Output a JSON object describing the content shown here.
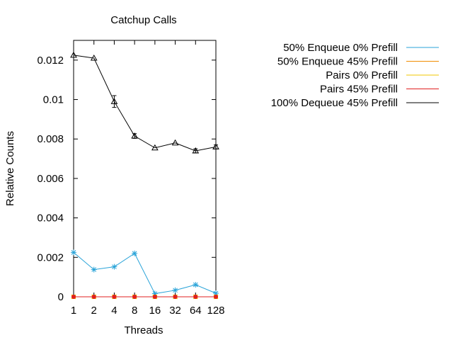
{
  "chart_data": {
    "type": "line",
    "title": "Catchup Calls",
    "xlabel": "Threads",
    "ylabel": "Relative Counts",
    "categories": [
      "1",
      "2",
      "4",
      "8",
      "16",
      "32",
      "64",
      "128"
    ],
    "x_scale": "log2",
    "ylim": [
      0,
      0.013
    ],
    "yticks": [
      "0",
      "0.002",
      "0.004",
      "0.006",
      "0.008",
      "0.01",
      "0.012"
    ],
    "ytick_values": [
      0,
      0.002,
      0.004,
      0.006,
      0.008,
      0.01,
      0.012
    ],
    "grid": false,
    "legend_position": "right",
    "series": [
      {
        "name": "50% Enqueue 0% Prefill",
        "color": "#29a3d8",
        "marker": "asterisk",
        "values": [
          0.00225,
          0.00138,
          0.00152,
          0.0022,
          0.00016,
          0.00033,
          0.00061,
          0.00018
        ],
        "errors": [
          0,
          0,
          0,
          0,
          0,
          0,
          0,
          0
        ]
      },
      {
        "name": "50% Enqueue 45% Prefill",
        "color": "#f18d00",
        "marker": "square",
        "values": [
          0,
          0,
          0,
          0,
          0,
          0,
          0,
          0
        ],
        "errors": [
          0,
          0,
          0,
          0,
          0,
          0,
          0,
          0
        ]
      },
      {
        "name": "Pairs 0% Prefill",
        "color": "#f2c700",
        "marker": "cross",
        "values": [
          0,
          0,
          0,
          0,
          0,
          0,
          0,
          0
        ],
        "errors": [
          0,
          0,
          0,
          0,
          0,
          0,
          0,
          0
        ]
      },
      {
        "name": "Pairs 45% Prefill",
        "color": "#e02020",
        "marker": "circle",
        "values": [
          0,
          0,
          0,
          0,
          0,
          0,
          0,
          0
        ],
        "errors": [
          0,
          0,
          0,
          0,
          0,
          0,
          0,
          0
        ]
      },
      {
        "name": "100% Dequeue 45% Prefill",
        "color": "#000000",
        "marker": "triangle",
        "values": [
          0.01225,
          0.0121,
          0.0099,
          0.00815,
          0.00755,
          0.0078,
          0.0074,
          0.0076
        ],
        "errors": [
          0,
          0,
          0.0003,
          0.00012,
          0,
          0,
          0.0001,
          0.0001
        ]
      }
    ]
  }
}
